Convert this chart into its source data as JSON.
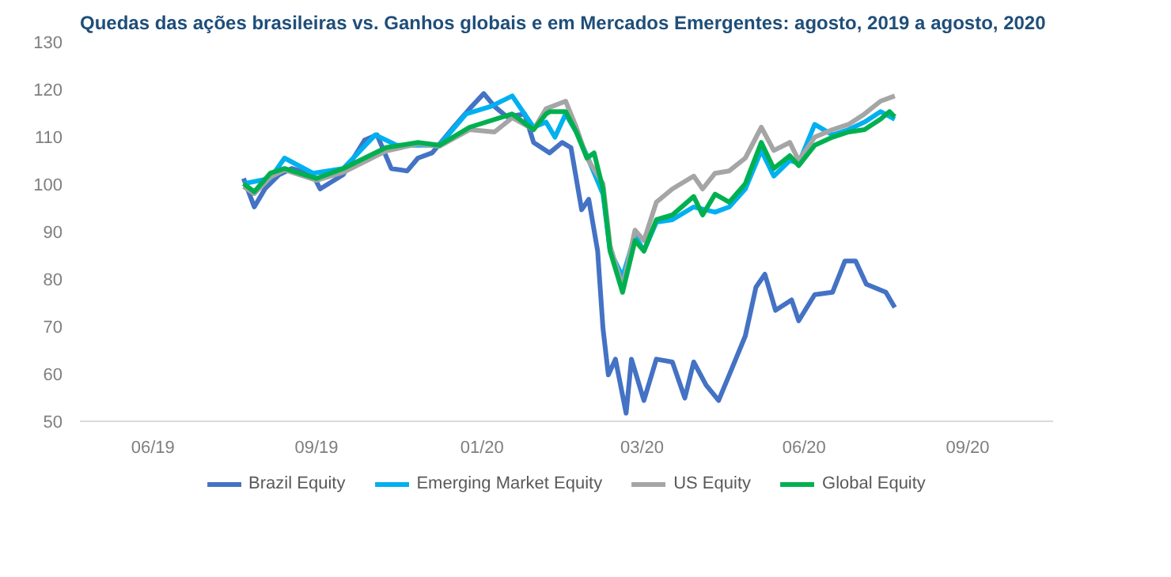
{
  "chart_data": {
    "type": "line",
    "title": "Quedas das ações brasileiras vs. Ganhos globais e em Mercados Emergentes: agosto, 2019 a agosto, 2020",
    "xlim": [
      "2019-05-20",
      "2020-11-17"
    ],
    "xticks": [
      {
        "value": "2019-06-30",
        "label": "06/19"
      },
      {
        "value": "2019-09-30",
        "label": "09/19"
      },
      {
        "value": "2020-01-01",
        "label": "01/20"
      },
      {
        "value": "2020-03-31",
        "label": "03/20"
      },
      {
        "value": "2020-06-30",
        "label": "06/20"
      },
      {
        "value": "2020-09-30",
        "label": "09/20"
      }
    ],
    "ylim": [
      50,
      130
    ],
    "yticks": [
      50,
      60,
      70,
      80,
      90,
      100,
      110,
      120,
      130
    ],
    "legend": "bottom",
    "line_style": "solid",
    "series": [
      {
        "name": "Brazil Equity",
        "color": "#4472c4",
        "x": [
          "2019-08-20",
          "2019-08-26",
          "2019-09-01",
          "2019-09-09",
          "2019-09-16",
          "2019-09-28",
          "2019-10-02",
          "2019-10-15",
          "2019-10-27",
          "2019-11-03",
          "2019-11-11",
          "2019-11-20",
          "2019-11-26",
          "2019-12-04",
          "2019-12-16",
          "2019-12-25",
          "2020-01-02",
          "2020-01-08",
          "2020-01-15",
          "2020-01-25",
          "2020-01-30",
          "2020-02-08",
          "2020-02-15",
          "2020-02-20",
          "2020-02-26",
          "2020-03-01",
          "2020-03-06",
          "2020-03-09",
          "2020-03-12",
          "2020-03-16",
          "2020-03-22",
          "2020-03-25",
          "2020-04-01",
          "2020-04-08",
          "2020-04-17",
          "2020-04-24",
          "2020-04-29",
          "2020-05-06",
          "2020-05-13",
          "2020-05-19",
          "2020-05-28",
          "2020-06-03",
          "2020-06-08",
          "2020-06-14",
          "2020-06-23",
          "2020-06-27",
          "2020-07-06",
          "2020-07-16",
          "2020-07-23",
          "2020-07-29",
          "2020-08-04",
          "2020-08-15",
          "2020-08-20"
        ],
        "values": [
          101.2,
          95.2,
          99,
          102,
          103.3,
          102,
          99,
          102,
          109.3,
          110.4,
          103.3,
          102.8,
          105.5,
          106.6,
          112,
          115.9,
          119.1,
          116.4,
          114.2,
          114.8,
          108.8,
          106.6,
          108.8,
          107.7,
          94.6,
          96.8,
          85.9,
          69.6,
          59.8,
          63.1,
          51.7,
          63.1,
          54.4,
          63.1,
          62.5,
          54.9,
          62.5,
          57.6,
          54.4,
          59.8,
          68,
          78.3,
          81,
          73.4,
          75.6,
          71.2,
          76.7,
          77.2,
          83.8,
          83.8,
          78.9,
          77.2,
          74
        ]
      },
      {
        "name": "Emerging Market Equity",
        "color": "#00b0f0",
        "x": [
          "2019-08-20",
          "2019-09-04",
          "2019-09-12",
          "2019-09-28",
          "2019-10-15",
          "2019-11-02",
          "2019-11-14",
          "2019-11-26",
          "2019-12-08",
          "2019-12-23",
          "2020-01-06",
          "2020-01-18",
          "2020-01-30",
          "2020-02-06",
          "2020-02-11",
          "2020-02-17",
          "2020-02-23",
          "2020-02-29",
          "2020-03-09",
          "2020-03-13",
          "2020-03-20",
          "2020-03-27",
          "2020-04-01",
          "2020-04-08",
          "2020-04-17",
          "2020-04-29",
          "2020-05-11",
          "2020-05-19",
          "2020-05-28",
          "2020-06-06",
          "2020-06-13",
          "2020-06-22",
          "2020-06-27",
          "2020-07-06",
          "2020-07-16",
          "2020-07-25",
          "2020-08-03",
          "2020-08-12",
          "2020-08-20"
        ],
        "values": [
          100.1,
          101.2,
          105.5,
          102.3,
          103.3,
          110.4,
          108.2,
          108.2,
          108.2,
          114.8,
          116.4,
          118.6,
          112,
          113.1,
          109.9,
          114.8,
          111,
          106,
          97.9,
          85.9,
          80.5,
          89.2,
          85.9,
          92,
          92.5,
          95.2,
          94.1,
          95.2,
          99,
          107.1,
          101.7,
          105,
          104.4,
          112.6,
          110.4,
          111.5,
          113.1,
          115.3,
          113.7
        ]
      },
      {
        "name": "US Equity",
        "color": "#a5a5a5",
        "x": [
          "2019-08-20",
          "2019-08-26",
          "2019-09-04",
          "2019-09-12",
          "2019-09-30",
          "2019-10-15",
          "2019-11-08",
          "2019-11-26",
          "2019-12-08",
          "2019-12-25",
          "2020-01-08",
          "2020-01-18",
          "2020-01-30",
          "2020-02-06",
          "2020-02-17",
          "2020-02-23",
          "2020-02-29",
          "2020-03-09",
          "2020-03-13",
          "2020-03-20",
          "2020-03-27",
          "2020-04-01",
          "2020-04-08",
          "2020-04-17",
          "2020-04-29",
          "2020-05-04",
          "2020-05-11",
          "2020-05-19",
          "2020-05-28",
          "2020-06-06",
          "2020-06-13",
          "2020-06-22",
          "2020-06-27",
          "2020-07-06",
          "2020-07-16",
          "2020-07-25",
          "2020-08-03",
          "2020-08-12",
          "2020-08-20"
        ],
        "values": [
          99.5,
          98,
          101.5,
          103,
          100.8,
          102.5,
          107,
          108.5,
          108,
          111.5,
          111,
          114,
          111.5,
          115.9,
          117.5,
          112,
          105.5,
          100.1,
          87,
          78.3,
          90.3,
          88.1,
          96.2,
          99,
          101.7,
          99,
          102.3,
          102.8,
          105.5,
          112,
          107.1,
          108.8,
          105,
          109.9,
          111.5,
          112.6,
          114.8,
          117.5,
          118.6
        ]
      },
      {
        "name": "Global Equity",
        "color": "#00b050",
        "x": [
          "2019-08-20",
          "2019-08-26",
          "2019-09-04",
          "2019-09-12",
          "2019-09-30",
          "2019-10-15",
          "2019-11-08",
          "2019-11-26",
          "2019-12-08",
          "2019-12-25",
          "2020-01-18",
          "2020-01-30",
          "2020-02-06",
          "2020-02-08",
          "2020-02-17",
          "2020-02-23",
          "2020-02-29",
          "2020-03-04",
          "2020-03-09",
          "2020-03-13",
          "2020-03-20",
          "2020-03-27",
          "2020-04-01",
          "2020-04-08",
          "2020-04-17",
          "2020-04-29",
          "2020-05-04",
          "2020-05-11",
          "2020-05-19",
          "2020-05-28",
          "2020-06-06",
          "2020-06-13",
          "2020-06-22",
          "2020-06-27",
          "2020-07-06",
          "2020-07-16",
          "2020-07-25",
          "2020-08-03",
          "2020-08-12",
          "2020-08-17",
          "2020-08-20"
        ],
        "values": [
          100.1,
          98.4,
          102.3,
          103.3,
          101.2,
          103.3,
          107.7,
          108.8,
          108.2,
          112,
          114.8,
          111.5,
          114.8,
          115.3,
          115.3,
          111,
          105.5,
          106.6,
          99,
          85.9,
          77.2,
          88.1,
          85.9,
          92.5,
          93.5,
          97.4,
          93.5,
          97.9,
          96.2,
          100.1,
          108.8,
          103.3,
          106,
          103.9,
          108.2,
          109.9,
          111,
          111.5,
          113.7,
          115.3,
          114.2
        ]
      }
    ]
  }
}
